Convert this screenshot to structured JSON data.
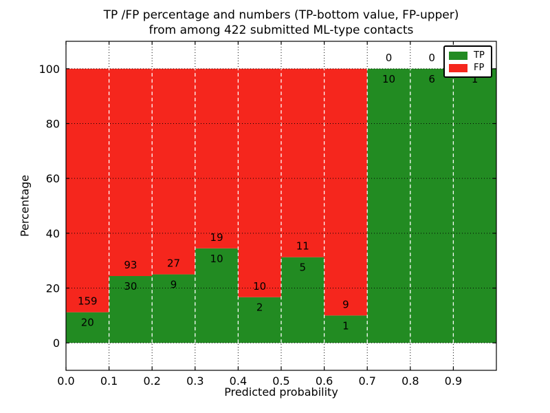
{
  "figure": {
    "title_line1": "TP /FP percentage and numbers (TP-bottom value, FP-upper)",
    "title_line2": "from among 422 submitted ML-type contacts",
    "xlabel": "Predicted probability",
    "ylabel": "Percentage",
    "legend": {
      "tp_label": "TP",
      "fp_label": "FP"
    }
  },
  "colors": {
    "tp_green": "#228b22",
    "fp_red": "#f5261d",
    "grid_black": "#000000",
    "bar_boundary_white": "#ffffff",
    "background": "#ffffff"
  },
  "chart_data": {
    "type": "bar",
    "stacked": true,
    "title": "TP /FP percentage and numbers (TP-bottom value, FP-upper)\nfrom among 422 submitted ML-type contacts",
    "xlabel": "Predicted probability",
    "ylabel": "Percentage",
    "total_contacts": 422,
    "bin_width": 0.1,
    "bin_starts": [
      0.0,
      0.1,
      0.2,
      0.3,
      0.4,
      0.5,
      0.6,
      0.7,
      0.8,
      0.9
    ],
    "categories": [
      "0.0-0.1",
      "0.1-0.2",
      "0.2-0.3",
      "0.3-0.4",
      "0.4-0.5",
      "0.5-0.6",
      "0.6-0.7",
      "0.7-0.8",
      "0.8-0.9",
      "0.9-1.0"
    ],
    "series": [
      {
        "name": "TP",
        "color": "#228b22",
        "counts": [
          20,
          30,
          9,
          10,
          2,
          5,
          1,
          10,
          6,
          1
        ],
        "percent": [
          11.17,
          24.39,
          25.0,
          34.48,
          16.67,
          31.25,
          10.0,
          100.0,
          100.0,
          100.0
        ]
      },
      {
        "name": "FP",
        "color": "#f5261d",
        "counts": [
          159,
          93,
          27,
          19,
          10,
          11,
          9,
          0,
          0,
          0
        ],
        "percent": [
          88.83,
          75.61,
          75.0,
          65.52,
          83.33,
          68.75,
          90.0,
          0.0,
          0.0,
          0.0
        ]
      }
    ],
    "xlim": [
      0.0,
      1.0
    ],
    "ylim": [
      -10,
      110
    ],
    "x_ticks": [
      0.0,
      0.1,
      0.2,
      0.3,
      0.4,
      0.5,
      0.6,
      0.7,
      0.8,
      0.9
    ],
    "x_tick_labels": [
      "0.0",
      "0.1",
      "0.2",
      "0.3",
      "0.4",
      "0.5",
      "0.6",
      "0.7",
      "0.8",
      "0.9"
    ],
    "y_ticks": [
      0,
      20,
      40,
      60,
      80,
      100
    ],
    "y_tick_labels": [
      "0",
      "20",
      "40",
      "60",
      "80",
      "100"
    ],
    "grid": true,
    "legend_position": "upper right",
    "legend_entries": [
      "TP",
      "FP"
    ]
  }
}
